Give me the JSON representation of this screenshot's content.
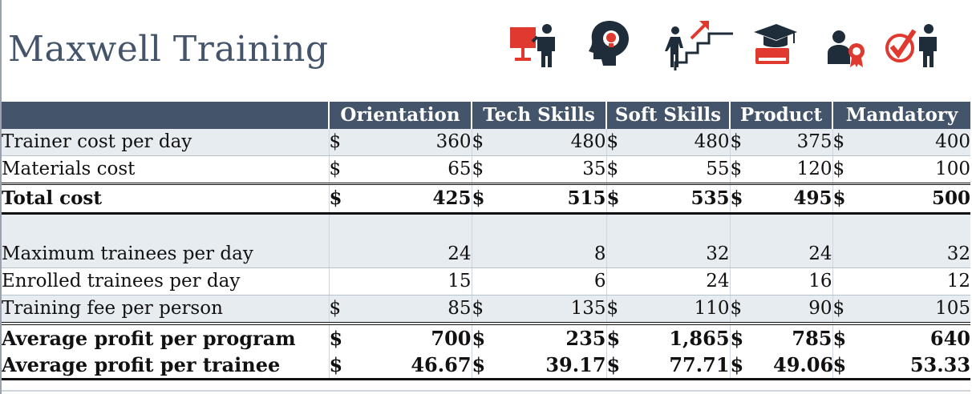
{
  "title": "Maxwell Training",
  "colors": {
    "header_bg": "#44546a",
    "title": "#44546a",
    "accent_red": "#e03a30",
    "icon_dark": "#1f2d3a",
    "shade": "#e7ecf1"
  },
  "icons": [
    "presentation-trainer-icon",
    "brain-idea-icon",
    "career-stairs-icon",
    "education-book-icon",
    "certified-person-icon",
    "checkmark-trainer-icon"
  ],
  "columns": [
    "Orientation",
    "Tech Skills",
    "Soft Skills",
    "Product",
    "Mandatory"
  ],
  "rows": [
    {
      "label": "Trainer cost per day",
      "cur": true,
      "values": [
        "360",
        "480",
        "480",
        "375",
        "400"
      ]
    },
    {
      "label": "Materials cost",
      "cur": true,
      "values": [
        "65",
        "35",
        "55",
        "120",
        "100"
      ]
    },
    {
      "label": "Total cost",
      "cur": true,
      "values": [
        "425",
        "515",
        "535",
        "495",
        "500"
      ]
    },
    {
      "label": "",
      "cur": false,
      "values": [
        "",
        "",
        "",
        "",
        ""
      ]
    },
    {
      "label": "Maximum trainees per day",
      "cur": false,
      "values": [
        "24",
        "8",
        "32",
        "24",
        "32"
      ]
    },
    {
      "label": "Enrolled trainees per day",
      "cur": false,
      "values": [
        "15",
        "6",
        "24",
        "16",
        "12"
      ]
    },
    {
      "label": "Training fee per person",
      "cur": true,
      "values": [
        "85",
        "135",
        "110",
        "90",
        "105"
      ]
    },
    {
      "label": "Average profit per program",
      "cur": true,
      "values": [
        "700",
        "235",
        "1,865",
        "785",
        "640"
      ]
    },
    {
      "label": "Average profit per trainee",
      "cur": true,
      "values": [
        "46.67",
        "39.17",
        "77.71",
        "49.06",
        "53.33"
      ]
    }
  ],
  "currency_symbol": "$"
}
